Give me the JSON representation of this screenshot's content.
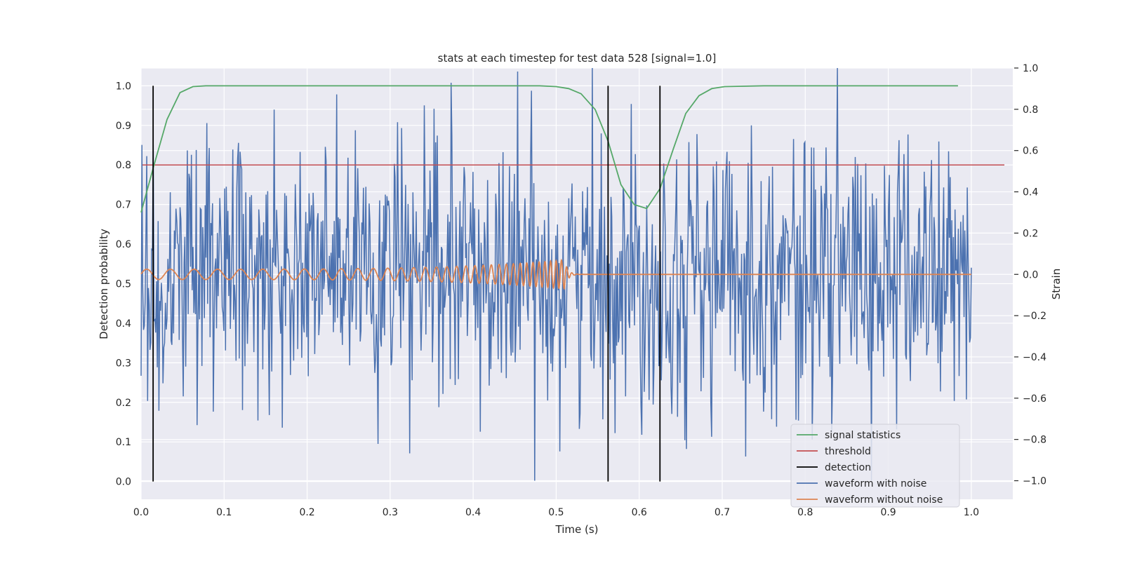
{
  "chart_data": {
    "type": "line",
    "title": "stats at each timestep for test data 528 [signal=1.0]",
    "xlabel": "Time (s)",
    "ylabel": "Detection probability",
    "y2label": "Strain",
    "xlim": [
      0.0,
      1.05
    ],
    "ylim": [
      -0.045,
      1.045
    ],
    "y2lim": [
      -1.09,
      1.0
    ],
    "xticks": [
      "0.0",
      "0.1",
      "0.2",
      "0.3",
      "0.4",
      "0.5",
      "0.6",
      "0.7",
      "0.8",
      "0.9",
      "1.0"
    ],
    "yticks": [
      "0.0",
      "0.1",
      "0.2",
      "0.3",
      "0.4",
      "0.5",
      "0.6",
      "0.7",
      "0.8",
      "0.9",
      "1.0"
    ],
    "y2ticks": [
      "−1.0",
      "−0.8",
      "−0.6",
      "−0.4",
      "−0.2",
      "0.0",
      "0.2",
      "0.4",
      "0.6",
      "0.8",
      "1.0"
    ],
    "grid": true,
    "legend_position": "lower-right",
    "colors": {
      "signal": "#55a868",
      "threshold": "#c44e52",
      "detection": "#000000",
      "noisy": "#4c72b0",
      "clean": "#dd8452",
      "background": "#eaeaf2",
      "grid": "#ffffff"
    },
    "legend": [
      {
        "label": "signal statistics",
        "color": "#55a868"
      },
      {
        "label": "threshold",
        "color": "#c44e52"
      },
      {
        "label": "detection",
        "color": "#000000"
      },
      {
        "label": "waveform with noise",
        "color": "#4c72b0"
      },
      {
        "label": "waveform without noise",
        "color": "#dd8452"
      }
    ],
    "threshold": 0.8,
    "detections": [
      0.0145,
      0.5625,
      0.625
    ],
    "signal_statistics": {
      "x": [
        0.0,
        0.0156,
        0.03125,
        0.0469,
        0.0625,
        0.078,
        0.09375,
        0.2,
        0.3,
        0.4,
        0.48,
        0.5,
        0.515,
        0.53,
        0.547,
        0.5625,
        0.578,
        0.594,
        0.609,
        0.625,
        0.641,
        0.656,
        0.672,
        0.6875,
        0.703,
        0.75,
        0.85,
        0.984
      ],
      "y": [
        0.68,
        0.8,
        0.915,
        0.983,
        0.998,
        1.0,
        1.0,
        1.0,
        1.0,
        1.0,
        1.0,
        0.998,
        0.993,
        0.98,
        0.94,
        0.86,
        0.75,
        0.7,
        0.69,
        0.74,
        0.84,
        0.93,
        0.975,
        0.993,
        0.998,
        1.0,
        1.0,
        1.0
      ]
    },
    "waveform_without_noise": {
      "t_start": 0.0,
      "t_merger": 0.51,
      "t_end": 1.0,
      "amplitude_start": 0.025,
      "amplitude_peak": 0.07,
      "freq_start_hz": 35,
      "freq_peak_hz": 160
    },
    "waveform_with_noise": {
      "t_start": 0.0,
      "t_end": 1.0,
      "samples": 1024,
      "strain_min": -1.0,
      "strain_max": 1.0,
      "noise_std": 0.33
    }
  }
}
